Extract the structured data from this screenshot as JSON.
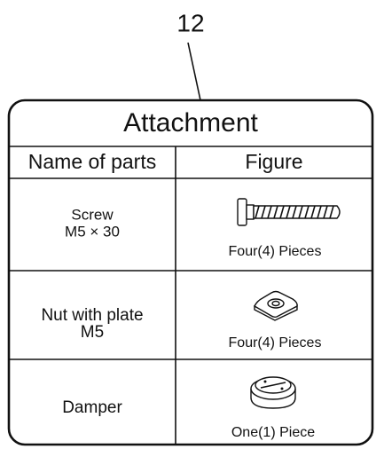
{
  "callout": "12",
  "table": {
    "title": "Attachment",
    "headers": [
      "Name of parts",
      "Figure"
    ],
    "rows": [
      {
        "name": [
          "Screw",
          "M5 × 30"
        ],
        "quantity": "Four(4) Pieces"
      },
      {
        "name": [
          "Nut with plate",
          "M5"
        ],
        "quantity": "Four(4) Pieces"
      },
      {
        "name": [
          "Damper"
        ],
        "quantity": "One(1) Piece"
      }
    ]
  }
}
